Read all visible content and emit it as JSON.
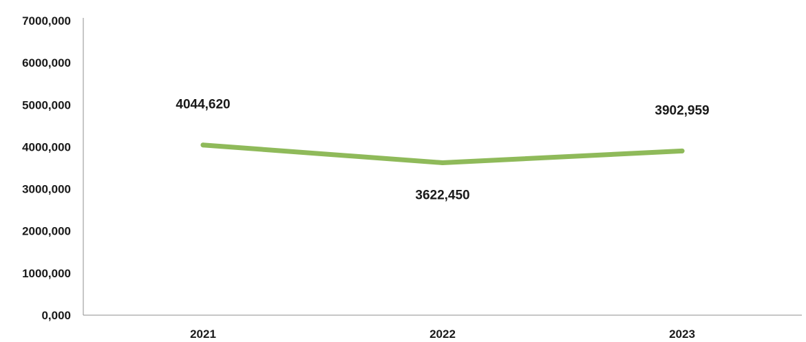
{
  "chart_data": {
    "type": "line",
    "title": "",
    "xlabel": "",
    "ylabel": "",
    "categories": [
      "2021",
      "2022",
      "2023"
    ],
    "series": [
      {
        "values": [
          4044.62,
          3622.45,
          3902.959
        ],
        "data_labels": [
          "4044,620",
          "3622,450",
          "3902,959"
        ],
        "color": "#8fba5a"
      }
    ],
    "ylim": [
      0,
      7000
    ],
    "y_ticks": [
      {
        "value": 0,
        "label": "0,000"
      },
      {
        "value": 1000,
        "label": "1000,000"
      },
      {
        "value": 2000,
        "label": "2000,000"
      },
      {
        "value": 3000,
        "label": "3000,000"
      },
      {
        "value": 4000,
        "label": "4000,000"
      },
      {
        "value": 5000,
        "label": "5000,000"
      },
      {
        "value": 6000,
        "label": "6000,000"
      },
      {
        "value": 7000,
        "label": "7000,000"
      }
    ],
    "grid": false,
    "legend": "none"
  }
}
